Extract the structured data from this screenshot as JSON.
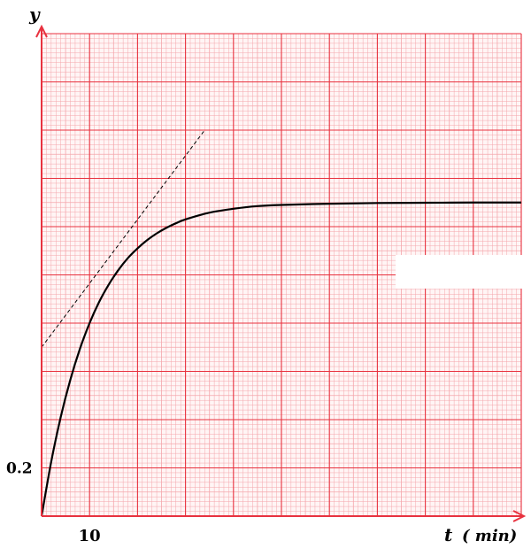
{
  "chart_data": {
    "type": "line",
    "title": "",
    "xlabel": "t",
    "xlabel_unit": "( min)",
    "ylabel": "y",
    "y_origin": 0,
    "x_origin": 0,
    "xlim": [
      0,
      100
    ],
    "ylim": [
      0,
      2.0
    ],
    "x_tick_label": "10",
    "y_tick_label": "0.2",
    "grid": true,
    "colors": {
      "grid_minor": "#f4a6ac",
      "grid_major": "#e8323f",
      "curve": "#000000",
      "tangent": "#000000",
      "axes": "#e8323f",
      "occluder": "#ffffff"
    },
    "series": [
      {
        "style": "solid",
        "x": [
          0,
          2,
          4,
          6,
          8,
          10,
          12,
          14,
          16,
          18,
          20,
          22,
          24,
          26,
          28,
          30,
          35,
          40,
          45,
          50,
          60,
          70,
          80,
          90,
          100
        ],
        "y": [
          0,
          0.225,
          0.412,
          0.566,
          0.694,
          0.8,
          0.888,
          0.96,
          1.02,
          1.07,
          1.11,
          1.144,
          1.172,
          1.195,
          1.214,
          1.23,
          1.258,
          1.274,
          1.285,
          1.29,
          1.295,
          1.298,
          1.299,
          1.3,
          1.3
        ]
      },
      {
        "style": "dashed",
        "x": [
          0,
          34
        ],
        "y": [
          0.7,
          1.6
        ]
      }
    ]
  }
}
